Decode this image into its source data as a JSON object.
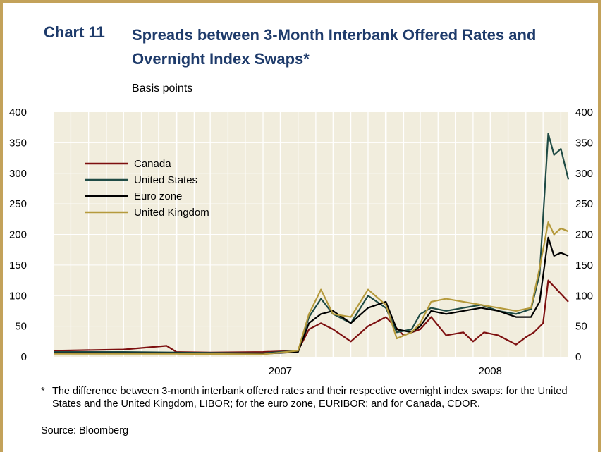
{
  "header": {
    "chart_number": "Chart 11",
    "title": "Spreads between 3-Month Interbank Offered Rates and Overnight Index Swaps*",
    "subtitle": "Basis points"
  },
  "footnote": {
    "marker": "*",
    "text": "The difference between 3-month interbank offered rates and their respective overnight index swaps: for the United States and the United Kingdom, LIBOR; for the euro zone, EURIBOR; and for Canada, CDOR."
  },
  "source": "Source: Bloomberg",
  "colors": {
    "background": "#f1eddd",
    "grid": "#ffffff",
    "Canada": "#7d0f0f",
    "United States": "#1f4b45",
    "Euro zone": "#000000",
    "United Kingdom": "#b59a3c"
  },
  "chart_data": {
    "type": "line",
    "title": "Spreads between 3-Month Interbank Offered Rates and Overnight Index Swaps*",
    "subtitle": "Basis points",
    "xlabel": "",
    "ylabel": "Basis points",
    "ylim": [
      0,
      400
    ],
    "yticks": [
      0,
      50,
      100,
      150,
      200,
      250,
      300,
      350,
      400
    ],
    "x_range": [
      "2006-06-01",
      "2008-11-14"
    ],
    "x_tick_labels": [
      {
        "label": "2007",
        "date": "2007-07-01"
      },
      {
        "label": "2008",
        "date": "2008-07-01"
      }
    ],
    "grid": true,
    "legend_position": "top-left",
    "series": [
      {
        "name": "Canada",
        "x": [
          "2006-06-01",
          "2006-10-01",
          "2006-12-15",
          "2007-01-01",
          "2007-03-01",
          "2007-06-01",
          "2007-08-01",
          "2007-08-20",
          "2007-09-10",
          "2007-10-01",
          "2007-11-01",
          "2007-12-01",
          "2008-01-01",
          "2008-02-01",
          "2008-03-01",
          "2008-03-20",
          "2008-04-15",
          "2008-05-15",
          "2008-06-01",
          "2008-06-20",
          "2008-07-15",
          "2008-08-15",
          "2008-09-01",
          "2008-09-15",
          "2008-10-01",
          "2008-10-10",
          "2008-10-25",
          "2008-11-14"
        ],
        "y": [
          10,
          12,
          18,
          8,
          7,
          8,
          10,
          45,
          55,
          45,
          25,
          50,
          65,
          35,
          45,
          65,
          35,
          40,
          25,
          40,
          35,
          20,
          32,
          40,
          55,
          125,
          110,
          90
        ]
      },
      {
        "name": "United States",
        "x": [
          "2006-06-01",
          "2006-10-01",
          "2007-01-01",
          "2007-06-01",
          "2007-08-01",
          "2007-08-20",
          "2007-09-10",
          "2007-10-01",
          "2007-11-01",
          "2007-12-01",
          "2008-01-01",
          "2008-01-20",
          "2008-02-15",
          "2008-03-01",
          "2008-03-20",
          "2008-04-15",
          "2008-05-15",
          "2008-06-15",
          "2008-07-15",
          "2008-08-15",
          "2008-09-10",
          "2008-09-25",
          "2008-10-10",
          "2008-10-20",
          "2008-11-01",
          "2008-11-14"
        ],
        "y": [
          8,
          8,
          7,
          6,
          10,
          65,
          95,
          70,
          55,
          100,
          80,
          40,
          45,
          70,
          80,
          75,
          80,
          85,
          75,
          70,
          78,
          135,
          365,
          330,
          340,
          290
        ]
      },
      {
        "name": "Euro zone",
        "x": [
          "2006-06-01",
          "2006-10-01",
          "2007-01-01",
          "2007-06-01",
          "2007-08-01",
          "2007-08-20",
          "2007-09-10",
          "2007-10-01",
          "2007-11-01",
          "2007-12-01",
          "2008-01-01",
          "2008-01-20",
          "2008-02-15",
          "2008-03-01",
          "2008-03-20",
          "2008-04-15",
          "2008-05-15",
          "2008-06-15",
          "2008-07-15",
          "2008-08-15",
          "2008-09-10",
          "2008-09-25",
          "2008-10-10",
          "2008-10-20",
          "2008-11-01",
          "2008-11-14"
        ],
        "y": [
          6,
          6,
          6,
          5,
          8,
          55,
          70,
          75,
          55,
          80,
          90,
          45,
          40,
          50,
          75,
          70,
          75,
          80,
          75,
          65,
          65,
          90,
          195,
          165,
          170,
          165
        ]
      },
      {
        "name": "United Kingdom",
        "x": [
          "2006-06-01",
          "2006-10-01",
          "2007-01-01",
          "2007-06-01",
          "2007-08-01",
          "2007-08-20",
          "2007-09-10",
          "2007-10-01",
          "2007-11-01",
          "2007-12-01",
          "2008-01-01",
          "2008-01-20",
          "2008-02-15",
          "2008-03-01",
          "2008-03-20",
          "2008-04-15",
          "2008-05-15",
          "2008-06-15",
          "2008-07-15",
          "2008-08-15",
          "2008-09-10",
          "2008-09-25",
          "2008-10-10",
          "2008-10-20",
          "2008-11-01",
          "2008-11-14"
        ],
        "y": [
          5,
          5,
          5,
          4,
          10,
          70,
          110,
          70,
          65,
          110,
          85,
          30,
          40,
          55,
          90,
          95,
          90,
          85,
          80,
          75,
          80,
          145,
          220,
          200,
          210,
          205
        ]
      }
    ]
  }
}
